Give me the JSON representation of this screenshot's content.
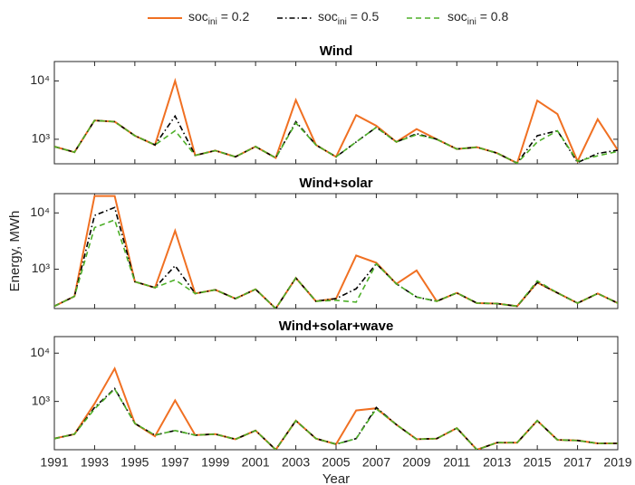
{
  "chart_data": [
    {
      "type": "line",
      "title": "Wind",
      "yscale": "log",
      "x": [
        1991,
        1992,
        1993,
        1994,
        1995,
        1996,
        1997,
        1998,
        1999,
        2000,
        2001,
        2002,
        2003,
        2004,
        2005,
        2006,
        2007,
        2008,
        2009,
        2010,
        2011,
        2012,
        2013,
        2014,
        2015,
        2016,
        2017,
        2018,
        2019
      ],
      "xlim": [
        1991,
        2019
      ],
      "xticks": [
        1991,
        1993,
        1995,
        1997,
        1999,
        2001,
        2003,
        2005,
        2007,
        2009,
        2011,
        2013,
        2015,
        2017,
        2019
      ],
      "ylim": [
        380,
        21500
      ],
      "yticks": [
        {
          "value": 1000,
          "label": "10³"
        },
        {
          "value": 10000,
          "label": "10⁴"
        }
      ],
      "series": [
        {
          "name": "soc",
          "name_sub": "ini",
          "name_rest": " = 0.2",
          "color": "#f07022",
          "dash": "none",
          "values": [
            750,
            600,
            2100,
            2000,
            1150,
            800,
            10000,
            530,
            640,
            500,
            750,
            480,
            4700,
            800,
            500,
            2600,
            1700,
            900,
            1500,
            1000,
            680,
            730,
            580,
            390,
            4600,
            2700,
            420,
            2200,
            650
          ]
        },
        {
          "name": "soc",
          "name_sub": "ini",
          "name_rest": " = 0.5",
          "color": "#000000",
          "dash": "6 3 1.5 3",
          "values": [
            750,
            600,
            2100,
            2000,
            1150,
            800,
            2500,
            530,
            640,
            500,
            750,
            480,
            2000,
            800,
            500,
            900,
            1600,
            900,
            1250,
            1000,
            680,
            730,
            580,
            390,
            1150,
            1400,
            400,
            570,
            650
          ]
        },
        {
          "name": "soc",
          "name_sub": "ini",
          "name_rest": " = 0.8",
          "color": "#4daf28",
          "dash": "6 4",
          "values": [
            750,
            600,
            2100,
            2000,
            1150,
            800,
            1400,
            530,
            640,
            500,
            750,
            480,
            1900,
            800,
            500,
            900,
            1600,
            900,
            1200,
            1000,
            680,
            730,
            580,
            390,
            900,
            1400,
            420,
            520,
            620
          ]
        }
      ]
    },
    {
      "type": "line",
      "title": "Wind+solar",
      "yscale": "log",
      "ylabel": "Energy, MWh",
      "x": [
        1991,
        1992,
        1993,
        1994,
        1995,
        1996,
        1997,
        1998,
        1999,
        2000,
        2001,
        2002,
        2003,
        2004,
        2005,
        2006,
        2007,
        2008,
        2009,
        2010,
        2011,
        2012,
        2013,
        2014,
        2015,
        2016,
        2017,
        2018,
        2019
      ],
      "xlim": [
        1991,
        2019
      ],
      "xticks": [
        1991,
        1993,
        1995,
        1997,
        1999,
        2001,
        2003,
        2005,
        2007,
        2009,
        2011,
        2013,
        2015,
        2017,
        2019
      ],
      "ylim": [
        200,
        22000
      ],
      "yticks": [
        {
          "value": 1000,
          "label": "10³"
        },
        {
          "value": 10000,
          "label": "10⁴"
        }
      ],
      "series": [
        {
          "color": "#f07022",
          "dash": "none",
          "values": [
            220,
            330,
            20000,
            20000,
            600,
            470,
            4800,
            370,
            430,
            300,
            440,
            200,
            700,
            270,
            300,
            1750,
            1300,
            550,
            950,
            270,
            380,
            250,
            245,
            220,
            580,
            380,
            250,
            370,
            250
          ]
        },
        {
          "color": "#000000",
          "dash": "6 3 1.5 3",
          "values": [
            220,
            330,
            9000,
            12500,
            600,
            470,
            1150,
            370,
            430,
            300,
            440,
            200,
            700,
            270,
            300,
            450,
            1250,
            550,
            320,
            270,
            380,
            250,
            245,
            220,
            580,
            380,
            250,
            370,
            250
          ]
        },
        {
          "color": "#4daf28",
          "dash": "6 4",
          "values": [
            220,
            330,
            5500,
            7500,
            600,
            470,
            650,
            370,
            430,
            300,
            440,
            200,
            700,
            270,
            280,
            260,
            1250,
            550,
            320,
            270,
            380,
            250,
            245,
            220,
            620,
            380,
            250,
            370,
            250
          ]
        }
      ]
    },
    {
      "type": "line",
      "title": "Wind+solar+wave",
      "yscale": "log",
      "xlabel": "Year",
      "x": [
        1991,
        1992,
        1993,
        1994,
        1995,
        1996,
        1997,
        1998,
        1999,
        2000,
        2001,
        2002,
        2003,
        2004,
        2005,
        2006,
        2007,
        2008,
        2009,
        2010,
        2011,
        2012,
        2013,
        2014,
        2015,
        2016,
        2017,
        2018,
        2019
      ],
      "xlim": [
        1991,
        2019
      ],
      "xticks": [
        1991,
        1993,
        1995,
        1997,
        1999,
        2001,
        2003,
        2005,
        2007,
        2009,
        2011,
        2013,
        2015,
        2017,
        2019
      ],
      "ylim": [
        100,
        22000
      ],
      "yticks": [
        {
          "value": 1000,
          "label": "10³"
        },
        {
          "value": 10000,
          "label": "10⁴"
        }
      ],
      "series": [
        {
          "color": "#f07022",
          "dash": "none",
          "values": [
            170,
            210,
            900,
            4800,
            350,
            190,
            1050,
            200,
            210,
            165,
            250,
            100,
            400,
            170,
            130,
            650,
            720,
            330,
            165,
            170,
            280,
            100,
            140,
            140,
            400,
            160,
            155,
            135,
            135
          ]
        },
        {
          "color": "#000000",
          "dash": "6 3 1.5 3",
          "values": [
            170,
            210,
            750,
            1850,
            350,
            200,
            250,
            200,
            210,
            165,
            250,
            100,
            400,
            170,
            130,
            170,
            750,
            330,
            165,
            170,
            280,
            100,
            140,
            140,
            400,
            160,
            155,
            135,
            135
          ]
        },
        {
          "color": "#4daf28",
          "dash": "6 4",
          "values": [
            170,
            210,
            700,
            1800,
            350,
            200,
            250,
            200,
            210,
            165,
            250,
            100,
            400,
            170,
            130,
            170,
            700,
            330,
            165,
            170,
            280,
            100,
            140,
            140,
            400,
            160,
            155,
            135,
            135
          ]
        }
      ]
    }
  ]
}
